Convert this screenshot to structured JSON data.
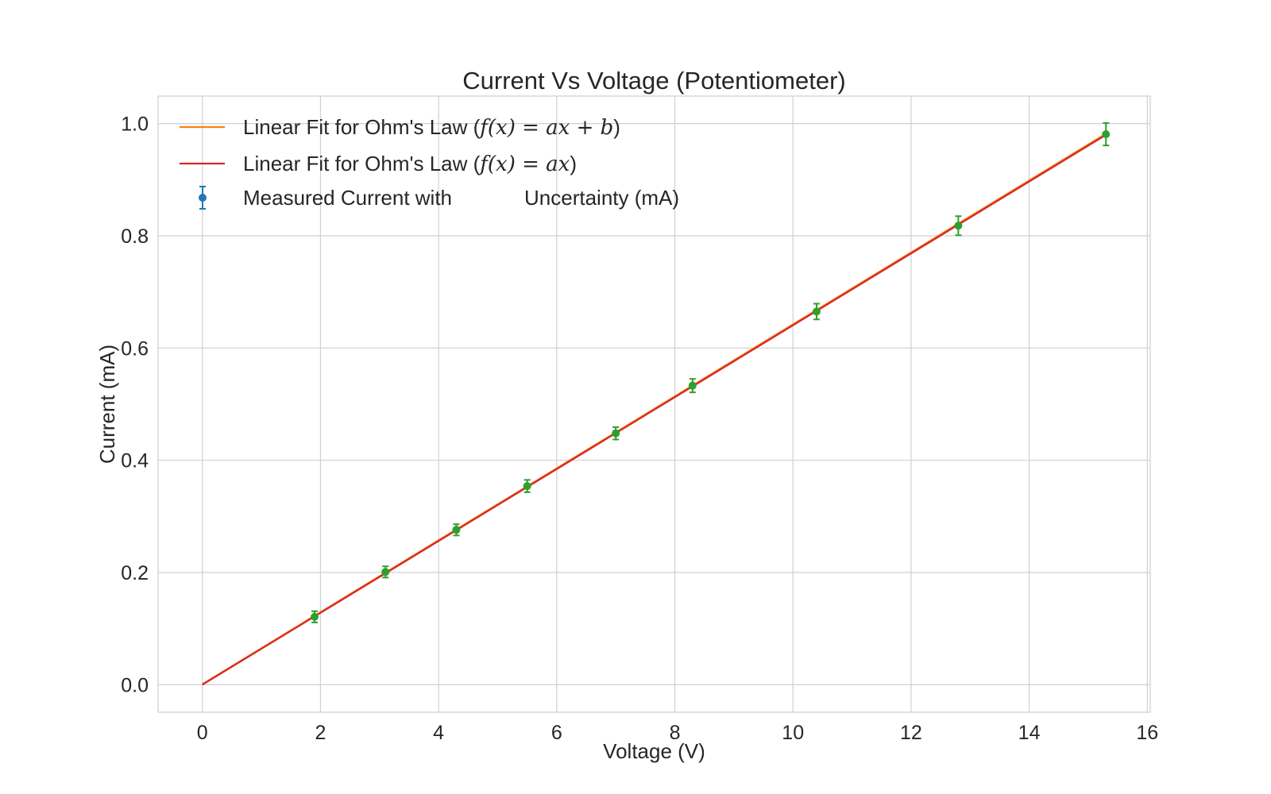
{
  "chart_data": {
    "type": "scatter",
    "title": "Current Vs Voltage (Potentiometer)",
    "xlabel": "Voltage (V)",
    "ylabel": "Current (mA)",
    "xlim": [
      -0.75,
      16.05
    ],
    "ylim": [
      -0.049,
      1.049
    ],
    "xticks": [
      0,
      2,
      4,
      6,
      8,
      10,
      12,
      14,
      16
    ],
    "yticks": [
      0.0,
      0.2,
      0.4,
      0.6,
      0.8,
      1.0
    ],
    "xtick_labels": [
      "0",
      "2",
      "4",
      "6",
      "8",
      "10",
      "12",
      "14",
      "16"
    ],
    "ytick_labels": [
      "0.0",
      "0.2",
      "0.4",
      "0.6",
      "0.8",
      "1.0"
    ],
    "grid": true,
    "legend_position": "top-left",
    "series": [
      {
        "kind": "line",
        "name": "Linear Fit for Ohm's Law (f(x) = ax + b)",
        "legend_prefix": "Linear Fit for Ohm's Law (",
        "legend_math": "f(x) = ax + b",
        "legend_suffix": ")",
        "color": "#ff7f0e",
        "x": [
          0,
          15.3
        ],
        "y": [
          0.001,
          0.982
        ]
      },
      {
        "kind": "line",
        "name": "Linear Fit for Ohm's Law (f(x) = ax)",
        "legend_prefix": "Linear Fit for Ohm's Law (",
        "legend_math": "f(x) = ax",
        "legend_suffix": ")",
        "color": "#d62728",
        "x": [
          0,
          15.3
        ],
        "y": [
          0.0,
          0.98
        ]
      },
      {
        "kind": "errorbar",
        "name": "Measured Current with Uncertainty (mA)",
        "legend_part1": "Measured Current with",
        "legend_part2": "Uncertainty (mA)",
        "legend_color": "#1f77b4",
        "color": "#2ca02c",
        "x": [
          1.9,
          3.1,
          4.3,
          5.5,
          7.0,
          8.3,
          10.4,
          12.8,
          15.3
        ],
        "y": [
          0.121,
          0.201,
          0.276,
          0.354,
          0.448,
          0.533,
          0.665,
          0.818,
          0.981
        ],
        "yerr": [
          0.01,
          0.01,
          0.01,
          0.011,
          0.011,
          0.012,
          0.014,
          0.017,
          0.02
        ]
      }
    ]
  }
}
